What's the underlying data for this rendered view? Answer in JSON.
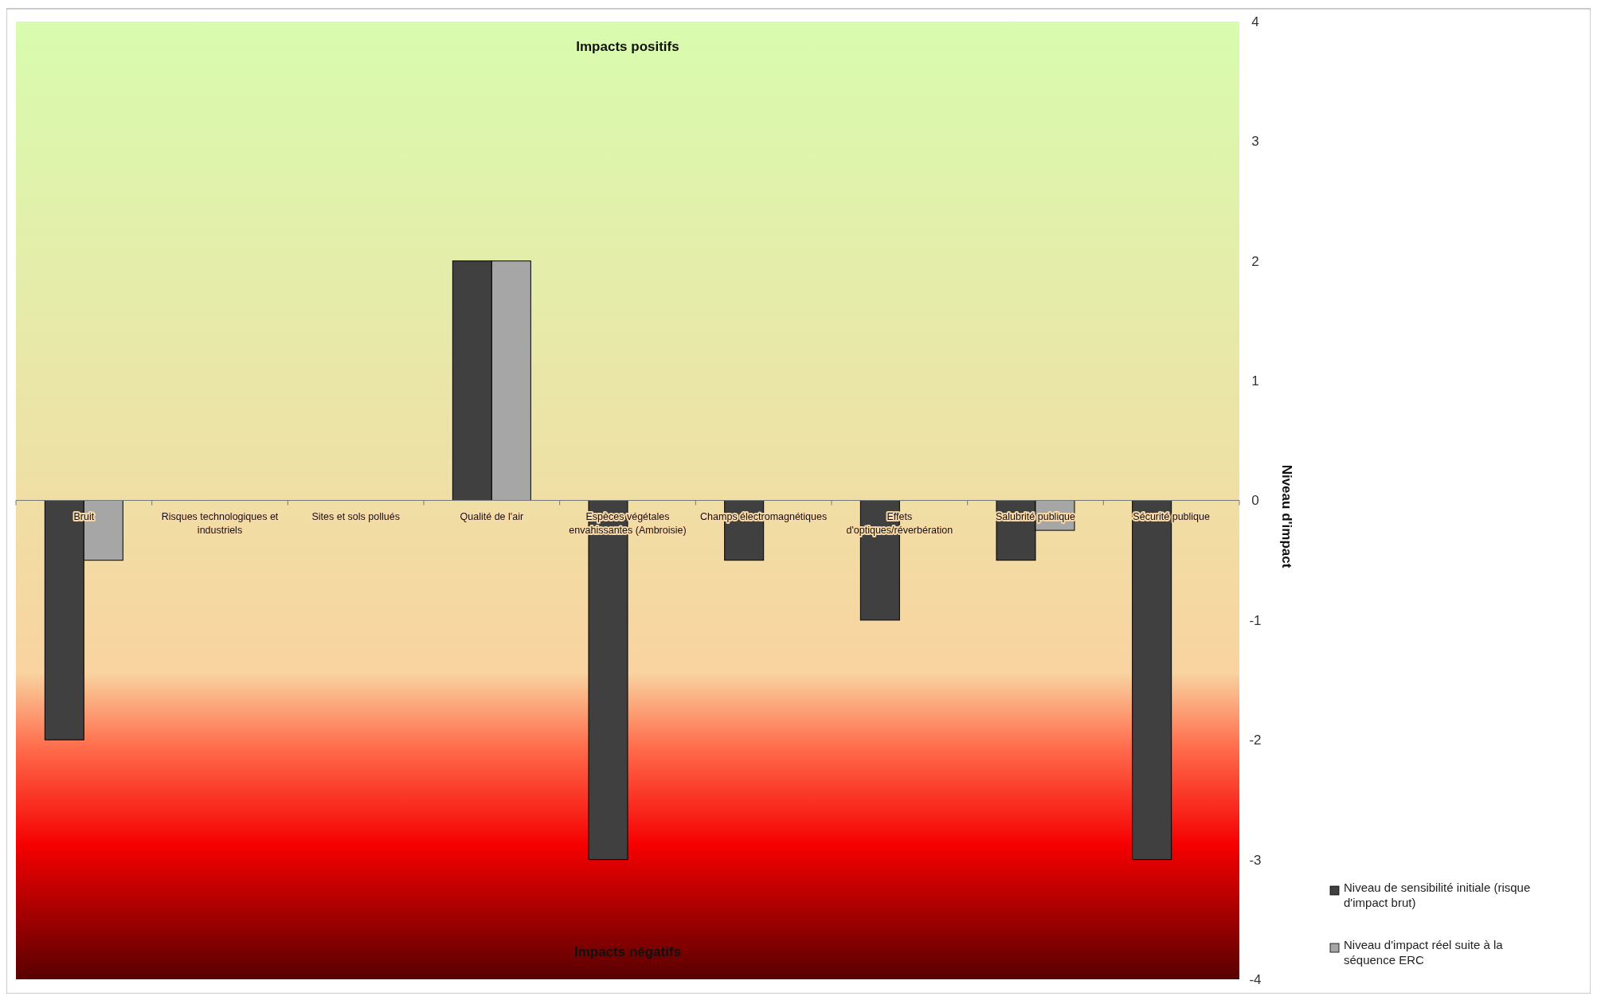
{
  "chart_data": {
    "type": "bar",
    "ylabel": "Niveau d'impact",
    "annotations": [
      "Impacts positifs",
      "Impacts négatifs"
    ],
    "categories": [
      "Bruit",
      "Risques technologiques et industriels",
      "Sites et sols pollués",
      "Qualité de l'air",
      "Espèces végétales envahissantes (Ambroisie)",
      "Champs électromagnétiques",
      "Effets d'optiques/réverbération",
      "Salubrité publique",
      "Sécurité publique"
    ],
    "series": [
      {
        "name": "Niveau de sensibilité initiale (risque d'impact brut)",
        "color": "#404040",
        "values": [
          -2,
          0,
          0,
          2,
          -3,
          -0.5,
          -1,
          -0.5,
          -3
        ]
      },
      {
        "name": "Niveau d'impact réel suite à la séquence ERC",
        "color": "#a6a6a6",
        "values": [
          -0.5,
          0,
          0,
          2,
          0,
          0,
          0,
          -0.25,
          0
        ]
      }
    ],
    "ylim": [
      -4,
      4
    ],
    "yticks": [
      -4,
      -3,
      -2,
      -1,
      0,
      1,
      2,
      3,
      4
    ],
    "grid": false,
    "legend": "right"
  }
}
